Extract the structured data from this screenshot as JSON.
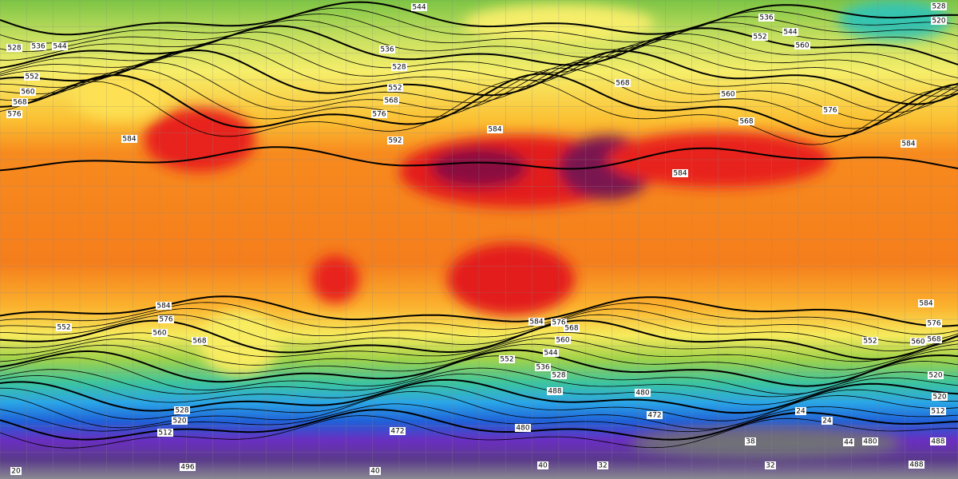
{
  "map": {
    "contour_labels": [
      "544",
      "536",
      "544",
      "552",
      "560",
      "528",
      "520",
      "528",
      "536",
      "544",
      "552",
      "560",
      "568",
      "576",
      "536",
      "528",
      "552",
      "568",
      "576",
      "584",
      "592",
      "584",
      "568",
      "560",
      "568",
      "576",
      "584",
      "584",
      "584",
      "576",
      "560",
      "552",
      "568",
      "584",
      "576",
      "568",
      "560",
      "544",
      "552",
      "536",
      "528",
      "488",
      "480",
      "472",
      "472",
      "480",
      "488",
      "488",
      "496",
      "528",
      "520",
      "512",
      "584",
      "576",
      "568",
      "520",
      "512",
      "520",
      "560",
      "552",
      "480",
      "20",
      "40",
      "40",
      "32",
      "32",
      "38",
      "44",
      "24",
      "24"
    ]
  }
}
